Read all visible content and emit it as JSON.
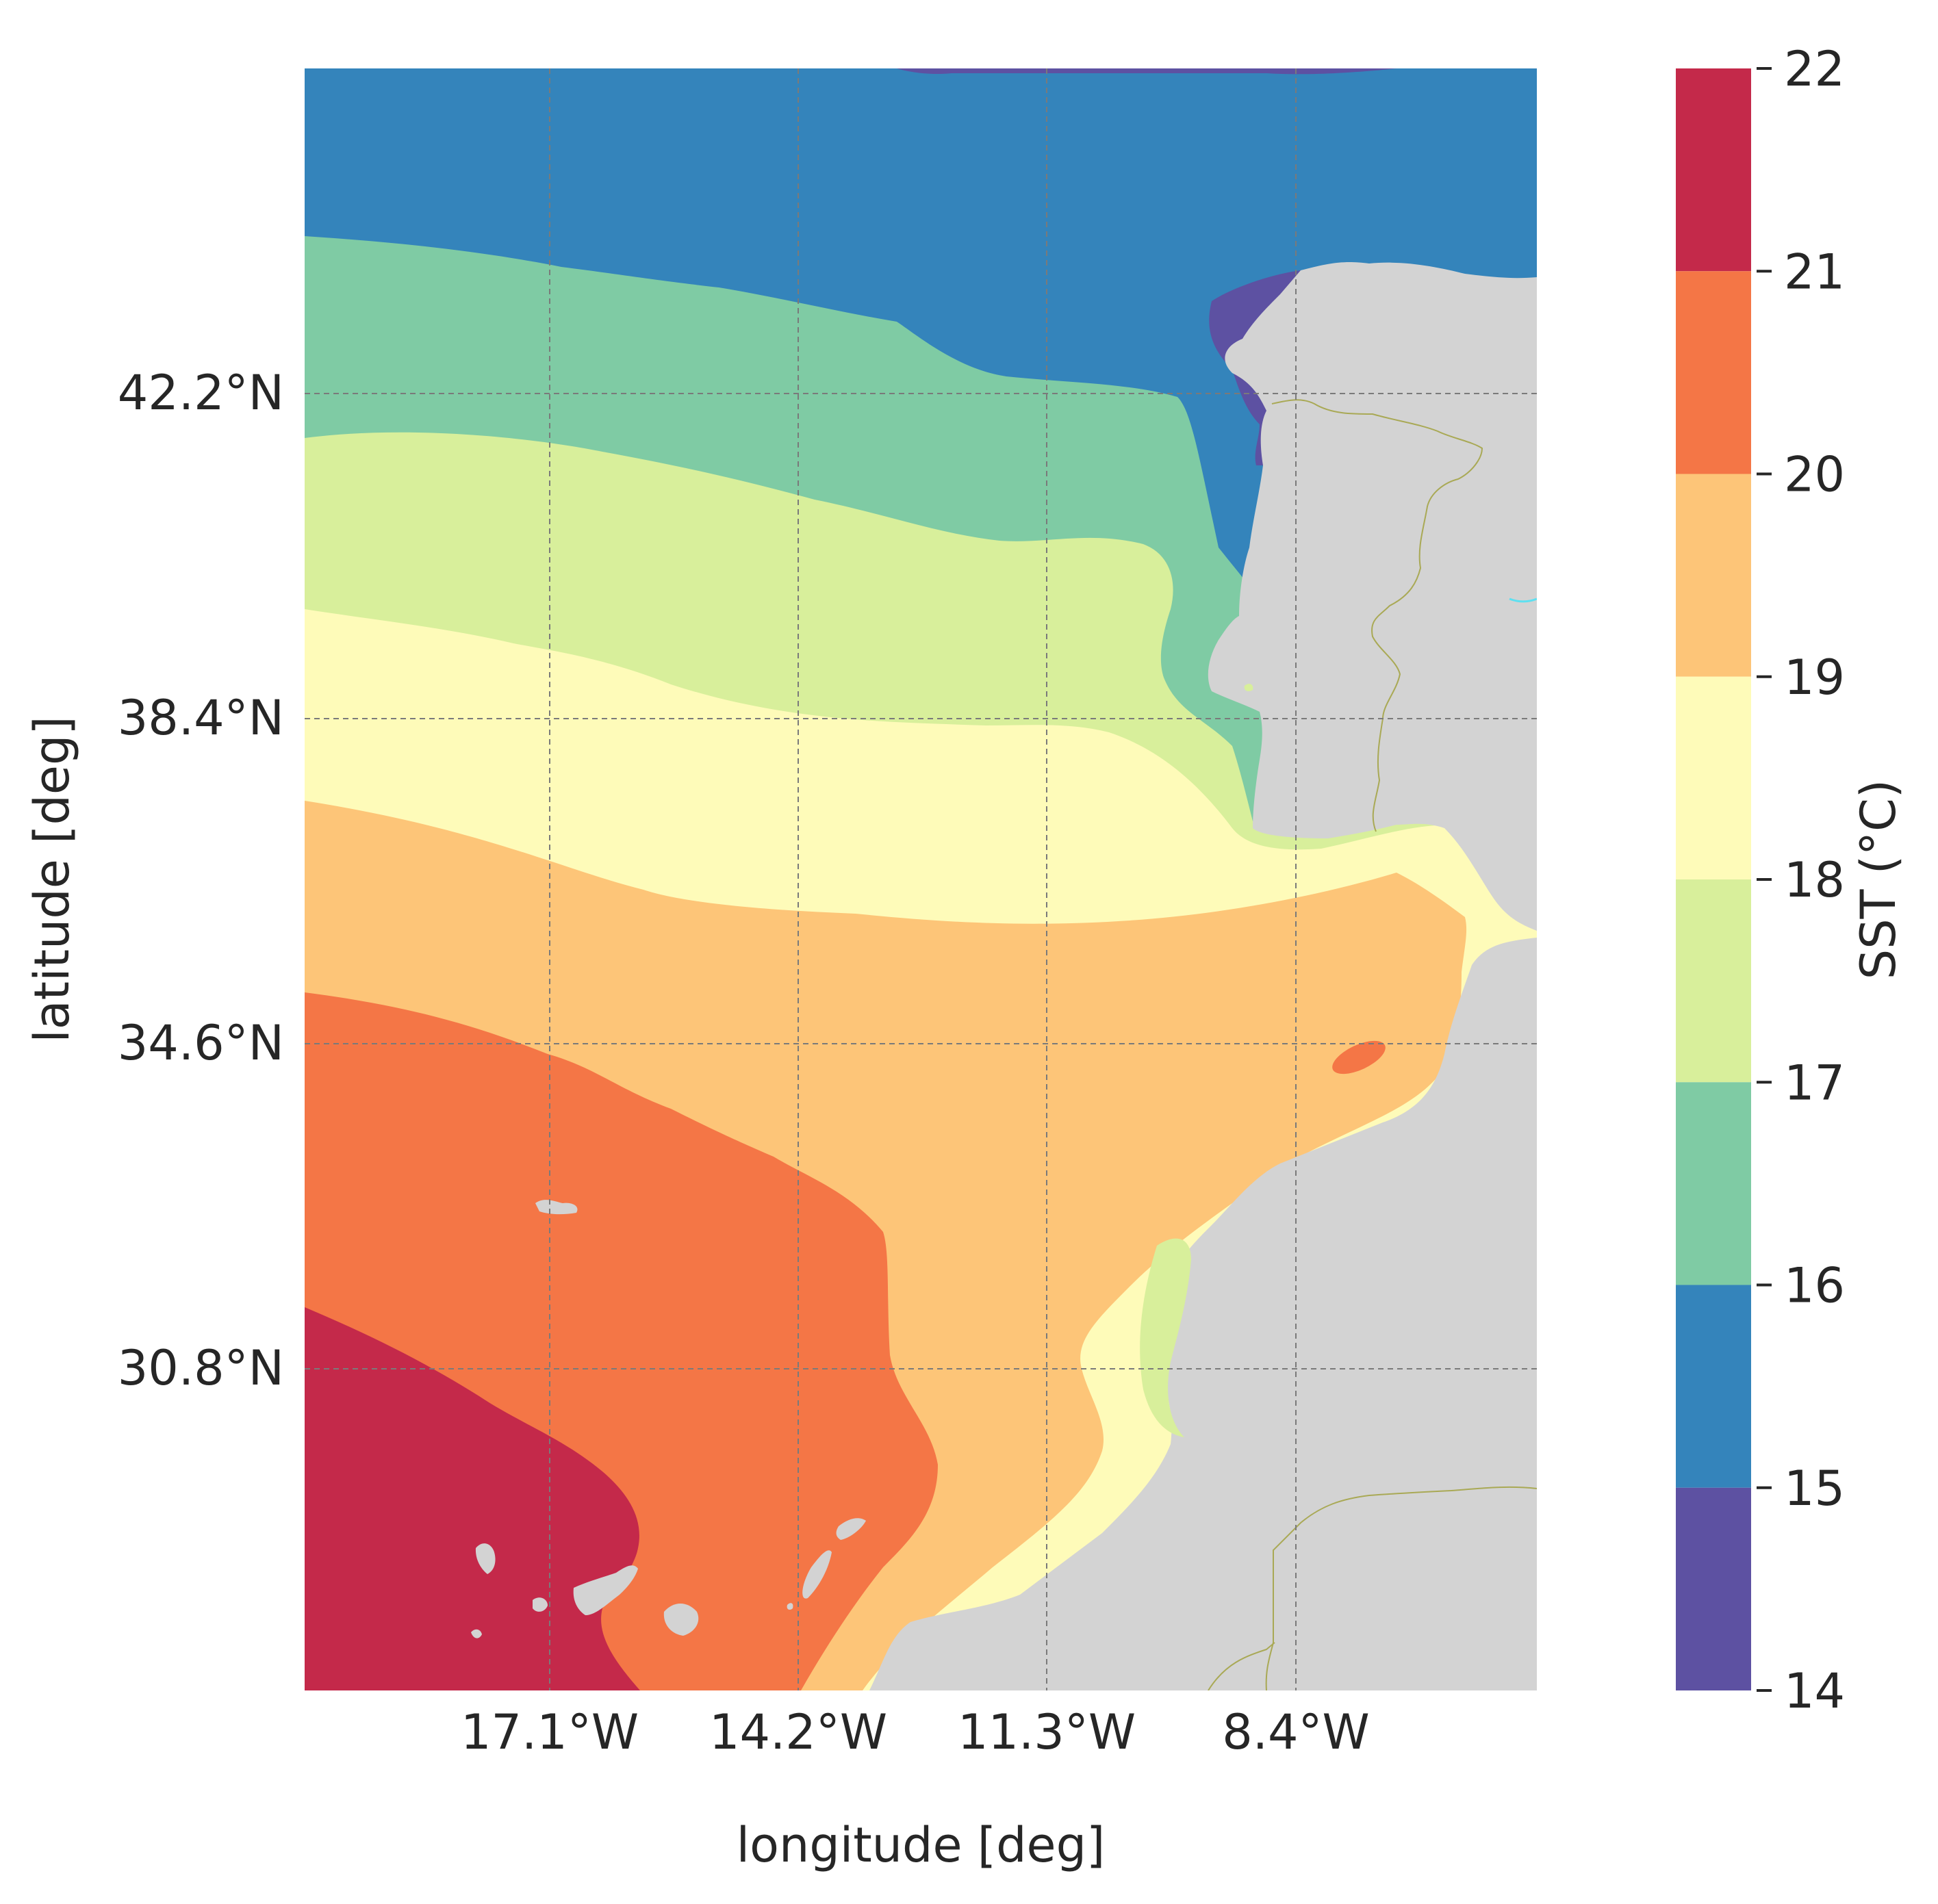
{
  "map": {
    "xlabel": "longitude [deg]",
    "ylabel": "latitude [deg]",
    "x_ticks": [
      "17.1°W",
      "14.2°W",
      "11.3°W",
      "8.4°W"
    ],
    "y_ticks": [
      "42.2°N",
      "38.4°N",
      "34.6°N",
      "30.8°N"
    ],
    "land_color": "#d3d3d3",
    "border_color": "#a9a955",
    "grid": true,
    "grid_style": "dashed"
  },
  "colorbar": {
    "label": "SST (°C)",
    "ticks": [
      "22",
      "21",
      "20",
      "19",
      "18",
      "17",
      "16",
      "15",
      "14"
    ],
    "bands": [
      {
        "from": 21,
        "to": 22,
        "color": "#c4294a"
      },
      {
        "from": 20,
        "to": 21,
        "color": "#f47646"
      },
      {
        "from": 19,
        "to": 20,
        "color": "#fdc578"
      },
      {
        "from": 18,
        "to": 19,
        "color": "#fefbb9"
      },
      {
        "from": 17,
        "to": 18,
        "color": "#d8ef9b"
      },
      {
        "from": 16,
        "to": 17,
        "color": "#7fcba4"
      },
      {
        "from": 15,
        "to": 16,
        "color": "#3484bb"
      },
      {
        "from": 14,
        "to": 15,
        "color": "#5d51a2"
      }
    ]
  }
}
